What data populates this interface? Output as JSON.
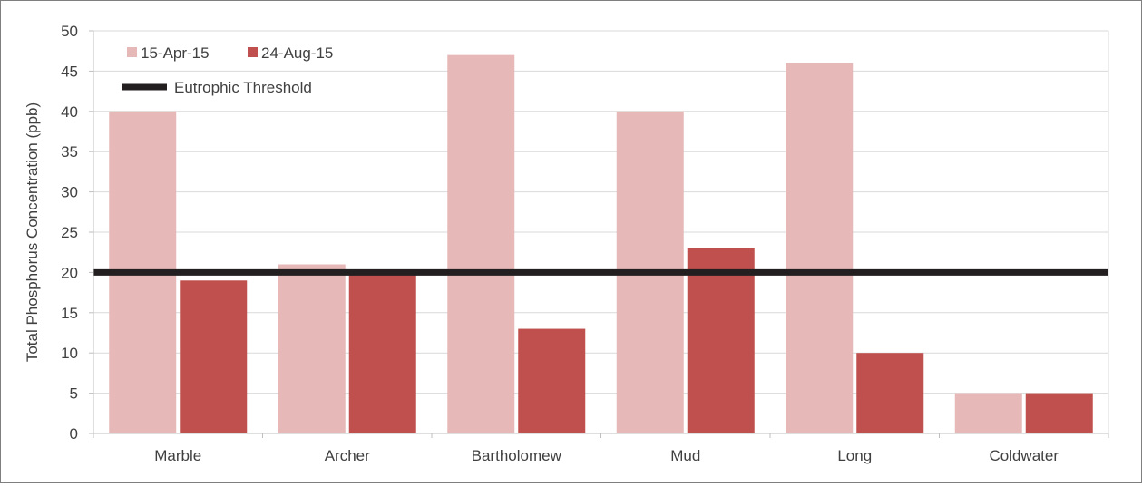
{
  "chart_data": {
    "type": "bar",
    "title": "",
    "xlabel": "",
    "ylabel": "Total Phosphorus Concentration (ppb)",
    "ylim": [
      0,
      50
    ],
    "yticks": [
      0,
      5,
      10,
      15,
      20,
      25,
      30,
      35,
      40,
      45,
      50
    ],
    "categories": [
      "Marble",
      "Archer",
      "Bartholomew",
      "Mud",
      "Long",
      "Coldwater"
    ],
    "series": [
      {
        "name": "15-Apr-15",
        "color": "#e6b9b8",
        "values": [
          40,
          21,
          47,
          40,
          46,
          5
        ]
      },
      {
        "name": "24-Aug-15",
        "color": "#c0504d",
        "values": [
          19,
          20,
          13,
          23,
          10,
          5
        ]
      }
    ],
    "reference_line": {
      "name": "Eutrophic Threshold",
      "value": 20,
      "color": "#231f20"
    },
    "grid": true,
    "legend": "top-left"
  }
}
